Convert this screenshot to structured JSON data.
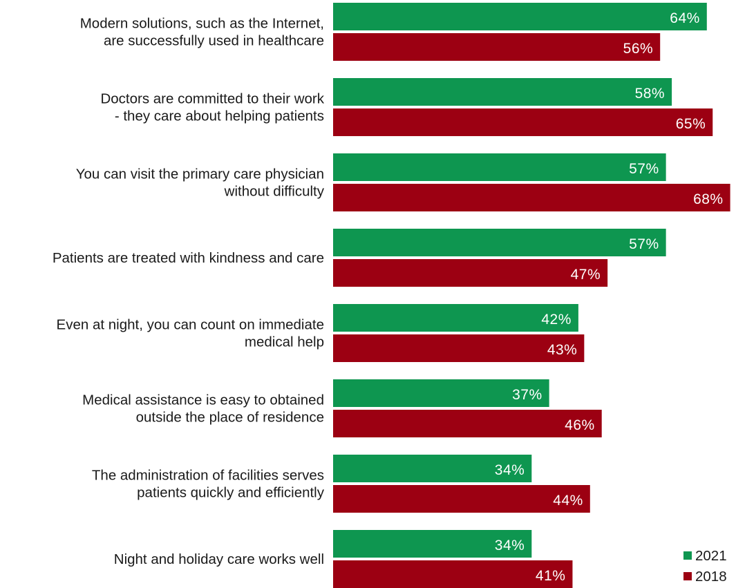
{
  "chart_data": {
    "type": "bar",
    "orientation": "horizontal",
    "categories": [
      [
        "Modern solutions, such as the Internet,",
        "are successfully used in healthcare"
      ],
      [
        "Doctors are committed to their work",
        "- they care about helping patients"
      ],
      [
        "You can visit the primary care physician",
        "without difficulty"
      ],
      [
        "Patients are treated with kindness and care"
      ],
      [
        "Even at night, you can count on immediate",
        "medical help"
      ],
      [
        "Medical assistance is easy to obtained",
        "outside the place of residence"
      ],
      [
        "The administration of facilities serves",
        "patients quickly and efficiently"
      ],
      [
        "Night and holiday care works well"
      ]
    ],
    "series": [
      {
        "name": "2021",
        "color": "#0e9650",
        "values": [
          64,
          58,
          57,
          57,
          42,
          37,
          34,
          34
        ],
        "labels": [
          "64%",
          "58%",
          "57%",
          "57%",
          "42%",
          "37%",
          "34%",
          "34%"
        ]
      },
      {
        "name": "2018",
        "color": "#9c0012",
        "values": [
          56,
          65,
          68,
          47,
          43,
          46,
          44,
          41
        ],
        "labels": [
          "56%",
          "65%",
          "68%",
          "47%",
          "43%",
          "46%",
          "44%",
          "41%"
        ]
      }
    ],
    "legend": {
      "position": "bottom-right",
      "labels": [
        "2021",
        "2018"
      ]
    },
    "grid": false,
    "xlim": [
      0,
      68
    ]
  }
}
